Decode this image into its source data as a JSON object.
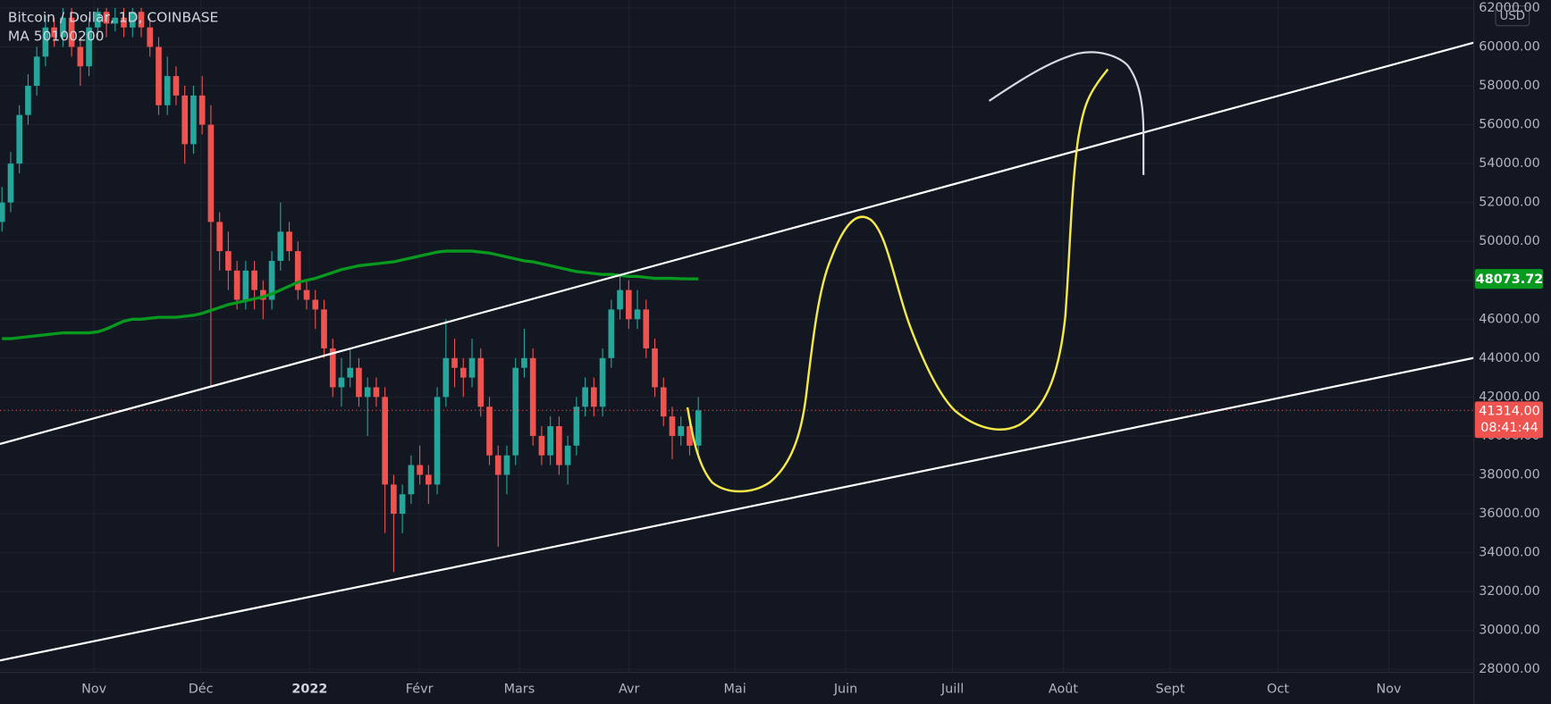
{
  "chart_data": {
    "type": "candlestick",
    "title": "Bitcoin / Dollar, 1D, COINBASE",
    "indicator": "MA 50100200",
    "currency": "USD",
    "ylim": [
      28000,
      62000
    ],
    "yticks": [
      {
        "value": 62000,
        "label": "62000.00"
      },
      {
        "value": 60000,
        "label": "60000.00"
      },
      {
        "value": 58000,
        "label": "58000.00"
      },
      {
        "value": 56000,
        "label": "56000.00"
      },
      {
        "value": 54000,
        "label": "54000.00"
      },
      {
        "value": 52000,
        "label": "52000.00"
      },
      {
        "value": 50000,
        "label": "50000.00"
      },
      {
        "value": 48000,
        "label": "48000.00"
      },
      {
        "value": 46000,
        "label": "46000.00"
      },
      {
        "value": 44000,
        "label": "44000.00"
      },
      {
        "value": 42000,
        "label": "42000.00"
      },
      {
        "value": 40000,
        "label": "40000.00"
      },
      {
        "value": 38000,
        "label": "38000.00"
      },
      {
        "value": 36000,
        "label": "36000.00"
      },
      {
        "value": 34000,
        "label": "34000.00"
      },
      {
        "value": 32000,
        "label": "32000.00"
      },
      {
        "value": 30000,
        "label": "30000.00"
      },
      {
        "value": 28000,
        "label": "28000.00"
      }
    ],
    "xtick_labels": [
      "Nov",
      "Déc",
      "2022",
      "Févr",
      "Mars",
      "Avr",
      "Mai",
      "Juin",
      "Juill",
      "Août",
      "Sept",
      "Oct",
      "Nov"
    ],
    "up_color": "#26a69a",
    "down_color": "#ef5350",
    "ma_color": "#089a1f",
    "last_price": {
      "value": 41314,
      "label": "41314.00",
      "countdown": "08:41:44"
    },
    "ma_last": {
      "value": 48073.72,
      "label": "48073.72"
    },
    "candles": [
      [
        51000,
        52800,
        50500,
        52000
      ],
      [
        52000,
        54600,
        51500,
        54000
      ],
      [
        54000,
        57000,
        53500,
        56500
      ],
      [
        56500,
        58600,
        56000,
        58000
      ],
      [
        58000,
        60000,
        57500,
        59500
      ],
      [
        59500,
        61600,
        59000,
        61000
      ],
      [
        61000,
        61500,
        60000,
        60500
      ],
      [
        60500,
        62000,
        60000,
        61500
      ],
      [
        61500,
        62000,
        59500,
        60000
      ],
      [
        60000,
        60500,
        58000,
        59000
      ],
      [
        59000,
        61500,
        58500,
        61000
      ],
      [
        61000,
        62000,
        60500,
        61800
      ],
      [
        61800,
        62000,
        60500,
        61200
      ],
      [
        61200,
        62000,
        60800,
        61500
      ],
      [
        61500,
        62000,
        60500,
        61000
      ],
      [
        61000,
        62000,
        60500,
        61800
      ],
      [
        61800,
        62000,
        60500,
        61000
      ],
      [
        61000,
        61500,
        59500,
        60000
      ],
      [
        60000,
        60500,
        56500,
        57000
      ],
      [
        57000,
        59500,
        56500,
        58500
      ],
      [
        58500,
        59000,
        57000,
        57500
      ],
      [
        57500,
        58000,
        54000,
        55000
      ],
      [
        55000,
        58000,
        54500,
        57500
      ],
      [
        57500,
        58500,
        55500,
        56000
      ],
      [
        56000,
        57000,
        42500,
        51000
      ],
      [
        51000,
        51500,
        48500,
        49500
      ],
      [
        49500,
        50500,
        47500,
        48500
      ],
      [
        48500,
        49000,
        46500,
        47000
      ],
      [
        47000,
        49000,
        46500,
        48500
      ],
      [
        48500,
        49000,
        46500,
        47500
      ],
      [
        47500,
        48000,
        46000,
        47000
      ],
      [
        47000,
        49500,
        46500,
        49000
      ],
      [
        49000,
        52000,
        48500,
        50500
      ],
      [
        50500,
        51000,
        49000,
        49500
      ],
      [
        49500,
        50000,
        47000,
        47500
      ],
      [
        47500,
        48000,
        46500,
        47000
      ],
      [
        47000,
        47500,
        45500,
        46500
      ],
      [
        46500,
        47000,
        44000,
        44500
      ],
      [
        44500,
        45000,
        42000,
        42500
      ],
      [
        42500,
        44000,
        41500,
        43000
      ],
      [
        43000,
        44500,
        42500,
        43500
      ],
      [
        43500,
        44000,
        41500,
        42000
      ],
      [
        42000,
        43000,
        40000,
        42500
      ],
      [
        42500,
        43000,
        41500,
        42000
      ],
      [
        42000,
        42500,
        35000,
        37500
      ],
      [
        37500,
        38000,
        33000,
        36000
      ],
      [
        36000,
        37500,
        35000,
        37000
      ],
      [
        37000,
        39000,
        36500,
        38500
      ],
      [
        38500,
        39500,
        37500,
        38000
      ],
      [
        38000,
        38500,
        36500,
        37500
      ],
      [
        37500,
        42500,
        37000,
        42000
      ],
      [
        42000,
        46000,
        41500,
        44000
      ],
      [
        44000,
        45000,
        42500,
        43500
      ],
      [
        43500,
        44000,
        42000,
        43000
      ],
      [
        43000,
        45000,
        42500,
        44000
      ],
      [
        44000,
        44500,
        41000,
        41500
      ],
      [
        41500,
        42000,
        38500,
        39000
      ],
      [
        39000,
        39500,
        34300,
        38000
      ],
      [
        38000,
        39500,
        37000,
        39000
      ],
      [
        39000,
        44000,
        38500,
        43500
      ],
      [
        43500,
        45500,
        43000,
        44000
      ],
      [
        44000,
        44500,
        39500,
        40000
      ],
      [
        40000,
        40500,
        38500,
        39000
      ],
      [
        39000,
        41000,
        38500,
        40500
      ],
      [
        40500,
        41000,
        38000,
        38500
      ],
      [
        38500,
        40000,
        37500,
        39500
      ],
      [
        39500,
        42000,
        39000,
        41500
      ],
      [
        41500,
        43000,
        41000,
        42500
      ],
      [
        42500,
        43000,
        41000,
        41500
      ],
      [
        41500,
        44500,
        41000,
        44000
      ],
      [
        44000,
        47000,
        43500,
        46500
      ],
      [
        46500,
        48200,
        46000,
        47500
      ],
      [
        47500,
        48000,
        45500,
        46000
      ],
      [
        46000,
        47500,
        45500,
        46500
      ],
      [
        46500,
        47000,
        44000,
        44500
      ],
      [
        44500,
        45000,
        42000,
        42500
      ],
      [
        42500,
        43000,
        40500,
        41000
      ],
      [
        41000,
        41500,
        38800,
        40000
      ],
      [
        40000,
        41000,
        39500,
        40500
      ],
      [
        40500,
        41000,
        39000,
        39500
      ],
      [
        39500,
        42000,
        39000,
        41314
      ]
    ],
    "ma": [
      45000,
      45000,
      45050,
      45100,
      45150,
      45200,
      45250,
      45300,
      45300,
      45300,
      45300,
      45350,
      45500,
      45700,
      45900,
      46000,
      46000,
      46050,
      46100,
      46100,
      46100,
      46150,
      46200,
      46300,
      46450,
      46600,
      46750,
      46850,
      46950,
      47050,
      47150,
      47300,
      47500,
      47700,
      47900,
      48000,
      48100,
      48250,
      48400,
      48550,
      48650,
      48750,
      48800,
      48850,
      48900,
      48950,
      49050,
      49150,
      49250,
      49350,
      49450,
      49500,
      49500,
      49500,
      49500,
      49450,
      49400,
      49300,
      49200,
      49100,
      49000,
      48950,
      48850,
      48750,
      48650,
      48550,
      48450,
      48400,
      48350,
      48300,
      48300,
      48250,
      48200,
      48200,
      48150,
      48100,
      48100,
      48100,
      48080,
      48075,
      48073.72
    ]
  }
}
